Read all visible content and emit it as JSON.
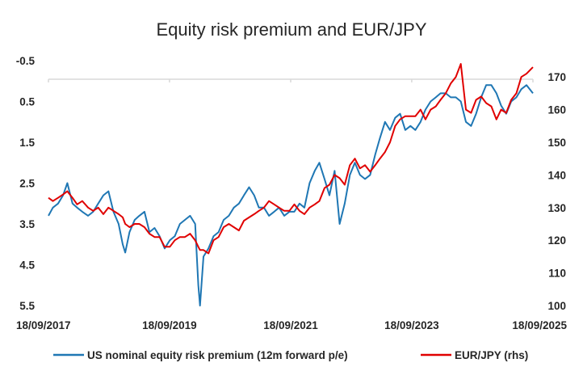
{
  "chart_data": {
    "type": "line",
    "title": "Equity risk premium and EUR/JPY",
    "xlabel": "",
    "ylabel": "",
    "x_ticks": [
      "18/09/2017",
      "18/09/2019",
      "18/09/2021",
      "18/09/2023",
      "18/09/2025"
    ],
    "y_left": {
      "ticks": [
        "-0.5",
        "0.5",
        "1.5",
        "2.5",
        "3.5",
        "4.5",
        "5.5"
      ],
      "range": [
        -0.5,
        5.5
      ],
      "inverted": true
    },
    "y_right": {
      "ticks": [
        "100",
        "110",
        "120",
        "130",
        "140",
        "150",
        "160",
        "170"
      ],
      "range": [
        100,
        175
      ]
    },
    "grid": false,
    "legend": "bottom",
    "series": [
      {
        "name": "US nominal equity risk premium (12m forward p/e)",
        "axis": "left",
        "color": "#1f77b4",
        "points": [
          [
            "2017-09-18",
            3.3
          ],
          [
            "2017-10-15",
            3.1
          ],
          [
            "2017-11-15",
            3.0
          ],
          [
            "2017-12-15",
            2.8
          ],
          [
            "2018-01-10",
            2.5
          ],
          [
            "2018-02-10",
            3.0
          ],
          [
            "2018-03-10",
            3.1
          ],
          [
            "2018-04-10",
            3.2
          ],
          [
            "2018-05-15",
            3.3
          ],
          [
            "2018-06-15",
            3.2
          ],
          [
            "2018-07-15",
            3.0
          ],
          [
            "2018-08-15",
            2.8
          ],
          [
            "2018-09-15",
            2.7
          ],
          [
            "2018-10-15",
            3.2
          ],
          [
            "2018-11-15",
            3.5
          ],
          [
            "2018-12-10",
            4.0
          ],
          [
            "2018-12-25",
            4.2
          ],
          [
            "2019-01-20",
            3.7
          ],
          [
            "2019-02-20",
            3.4
          ],
          [
            "2019-03-20",
            3.3
          ],
          [
            "2019-04-20",
            3.2
          ],
          [
            "2019-05-20",
            3.7
          ],
          [
            "2019-06-20",
            3.6
          ],
          [
            "2019-07-20",
            3.8
          ],
          [
            "2019-08-20",
            4.1
          ],
          [
            "2019-09-20",
            3.9
          ],
          [
            "2019-10-20",
            3.8
          ],
          [
            "2019-11-20",
            3.5
          ],
          [
            "2019-12-20",
            3.4
          ],
          [
            "2020-01-20",
            3.3
          ],
          [
            "2020-02-20",
            3.5
          ],
          [
            "2020-03-10",
            5.0
          ],
          [
            "2020-03-20",
            5.5
          ],
          [
            "2020-04-10",
            4.3
          ],
          [
            "2020-05-10",
            4.1
          ],
          [
            "2020-06-10",
            3.8
          ],
          [
            "2020-07-10",
            3.7
          ],
          [
            "2020-08-10",
            3.4
          ],
          [
            "2020-09-10",
            3.3
          ],
          [
            "2020-10-10",
            3.1
          ],
          [
            "2020-11-10",
            3.0
          ],
          [
            "2020-12-10",
            2.8
          ],
          [
            "2021-01-10",
            2.6
          ],
          [
            "2021-02-10",
            2.8
          ],
          [
            "2021-03-10",
            3.1
          ],
          [
            "2021-04-10",
            3.1
          ],
          [
            "2021-05-10",
            3.3
          ],
          [
            "2021-06-10",
            3.2
          ],
          [
            "2021-07-10",
            3.1
          ],
          [
            "2021-08-10",
            3.3
          ],
          [
            "2021-09-10",
            3.2
          ],
          [
            "2021-10-10",
            3.2
          ],
          [
            "2021-11-10",
            3.0
          ],
          [
            "2021-12-10",
            3.1
          ],
          [
            "2022-01-10",
            2.5
          ],
          [
            "2022-02-10",
            2.2
          ],
          [
            "2022-03-10",
            2.0
          ],
          [
            "2022-04-10",
            2.4
          ],
          [
            "2022-05-10",
            2.8
          ],
          [
            "2022-06-10",
            2.2
          ],
          [
            "2022-07-10",
            3.5
          ],
          [
            "2022-08-10",
            3.0
          ],
          [
            "2022-09-10",
            2.3
          ],
          [
            "2022-10-10",
            2.0
          ],
          [
            "2022-11-10",
            2.3
          ],
          [
            "2022-12-10",
            2.4
          ],
          [
            "2023-01-10",
            2.3
          ],
          [
            "2023-02-10",
            1.8
          ],
          [
            "2023-03-10",
            1.4
          ],
          [
            "2023-04-10",
            1.0
          ],
          [
            "2023-05-10",
            1.2
          ],
          [
            "2023-06-10",
            0.9
          ],
          [
            "2023-07-10",
            0.8
          ],
          [
            "2023-08-10",
            1.2
          ],
          [
            "2023-09-10",
            1.1
          ],
          [
            "2023-10-10",
            1.2
          ],
          [
            "2023-11-10",
            1.0
          ],
          [
            "2023-12-10",
            0.7
          ],
          [
            "2024-01-10",
            0.5
          ],
          [
            "2024-02-10",
            0.4
          ],
          [
            "2024-03-10",
            0.3
          ],
          [
            "2024-04-10",
            0.3
          ],
          [
            "2024-05-10",
            0.4
          ],
          [
            "2024-06-10",
            0.4
          ],
          [
            "2024-07-10",
            0.5
          ],
          [
            "2024-08-10",
            1.0
          ],
          [
            "2024-09-10",
            1.1
          ],
          [
            "2024-10-10",
            0.8
          ],
          [
            "2024-11-10",
            0.4
          ],
          [
            "2024-12-10",
            0.1
          ],
          [
            "2025-01-10",
            0.1
          ],
          [
            "2025-02-10",
            0.3
          ],
          [
            "2025-03-10",
            0.6
          ],
          [
            "2025-04-10",
            0.8
          ],
          [
            "2025-05-10",
            0.5
          ],
          [
            "2025-06-10",
            0.4
          ],
          [
            "2025-07-10",
            0.2
          ],
          [
            "2025-08-10",
            0.1
          ],
          [
            "2025-09-18",
            0.3
          ]
        ]
      },
      {
        "name": "EUR/JPY (rhs)",
        "axis": "right",
        "color": "#e00000",
        "points": [
          [
            "2017-09-18",
            133
          ],
          [
            "2017-10-15",
            132
          ],
          [
            "2017-11-15",
            133
          ],
          [
            "2017-12-15",
            134
          ],
          [
            "2018-01-10",
            135
          ],
          [
            "2018-02-10",
            133
          ],
          [
            "2018-03-10",
            131
          ],
          [
            "2018-04-10",
            132
          ],
          [
            "2018-05-15",
            130
          ],
          [
            "2018-06-15",
            129
          ],
          [
            "2018-07-15",
            130
          ],
          [
            "2018-08-15",
            128
          ],
          [
            "2018-09-15",
            130
          ],
          [
            "2018-10-15",
            129
          ],
          [
            "2018-11-15",
            128
          ],
          [
            "2018-12-10",
            127
          ],
          [
            "2018-12-25",
            125
          ],
          [
            "2019-01-20",
            124
          ],
          [
            "2019-02-20",
            125
          ],
          [
            "2019-03-20",
            125
          ],
          [
            "2019-04-20",
            124
          ],
          [
            "2019-05-20",
            122
          ],
          [
            "2019-06-20",
            121
          ],
          [
            "2019-07-20",
            121
          ],
          [
            "2019-08-20",
            118
          ],
          [
            "2019-09-20",
            118
          ],
          [
            "2019-10-20",
            120
          ],
          [
            "2019-11-20",
            121
          ],
          [
            "2019-12-20",
            121
          ],
          [
            "2020-01-20",
            122
          ],
          [
            "2020-02-20",
            120
          ],
          [
            "2020-03-10",
            118
          ],
          [
            "2020-03-20",
            117
          ],
          [
            "2020-04-10",
            117
          ],
          [
            "2020-05-10",
            116
          ],
          [
            "2020-06-10",
            120
          ],
          [
            "2020-07-10",
            121
          ],
          [
            "2020-08-10",
            124
          ],
          [
            "2020-09-10",
            125
          ],
          [
            "2020-10-10",
            124
          ],
          [
            "2020-11-10",
            123
          ],
          [
            "2020-12-10",
            126
          ],
          [
            "2021-01-10",
            127
          ],
          [
            "2021-02-10",
            128
          ],
          [
            "2021-03-10",
            129
          ],
          [
            "2021-04-10",
            130
          ],
          [
            "2021-05-10",
            132
          ],
          [
            "2021-06-10",
            131
          ],
          [
            "2021-07-10",
            130
          ],
          [
            "2021-08-10",
            129
          ],
          [
            "2021-09-10",
            129
          ],
          [
            "2021-10-10",
            131
          ],
          [
            "2021-11-10",
            129
          ],
          [
            "2021-12-10",
            128
          ],
          [
            "2022-01-10",
            130
          ],
          [
            "2022-02-10",
            131
          ],
          [
            "2022-03-10",
            132
          ],
          [
            "2022-04-10",
            136
          ],
          [
            "2022-05-10",
            137
          ],
          [
            "2022-06-10",
            140
          ],
          [
            "2022-07-10",
            139
          ],
          [
            "2022-08-10",
            137
          ],
          [
            "2022-09-10",
            143
          ],
          [
            "2022-10-10",
            145
          ],
          [
            "2022-11-10",
            142
          ],
          [
            "2022-12-10",
            143
          ],
          [
            "2023-01-10",
            141
          ],
          [
            "2023-02-10",
            143
          ],
          [
            "2023-03-10",
            145
          ],
          [
            "2023-04-10",
            147
          ],
          [
            "2023-05-10",
            150
          ],
          [
            "2023-06-10",
            155
          ],
          [
            "2023-07-10",
            157
          ],
          [
            "2023-08-10",
            158
          ],
          [
            "2023-09-10",
            158
          ],
          [
            "2023-10-10",
            158
          ],
          [
            "2023-11-10",
            160
          ],
          [
            "2023-12-10",
            157
          ],
          [
            "2024-01-10",
            160
          ],
          [
            "2024-02-10",
            161
          ],
          [
            "2024-03-10",
            163
          ],
          [
            "2024-04-10",
            165
          ],
          [
            "2024-05-10",
            168
          ],
          [
            "2024-06-10",
            170
          ],
          [
            "2024-07-10",
            174
          ],
          [
            "2024-08-10",
            160
          ],
          [
            "2024-09-10",
            159
          ],
          [
            "2024-10-10",
            163
          ],
          [
            "2024-11-10",
            164
          ],
          [
            "2024-12-10",
            162
          ],
          [
            "2025-01-10",
            161
          ],
          [
            "2025-02-10",
            157
          ],
          [
            "2025-03-10",
            160
          ],
          [
            "2025-04-10",
            159
          ],
          [
            "2025-05-10",
            163
          ],
          [
            "2025-06-10",
            165
          ],
          [
            "2025-07-10",
            170
          ],
          [
            "2025-08-10",
            171
          ],
          [
            "2025-09-18",
            173
          ]
        ]
      }
    ]
  }
}
